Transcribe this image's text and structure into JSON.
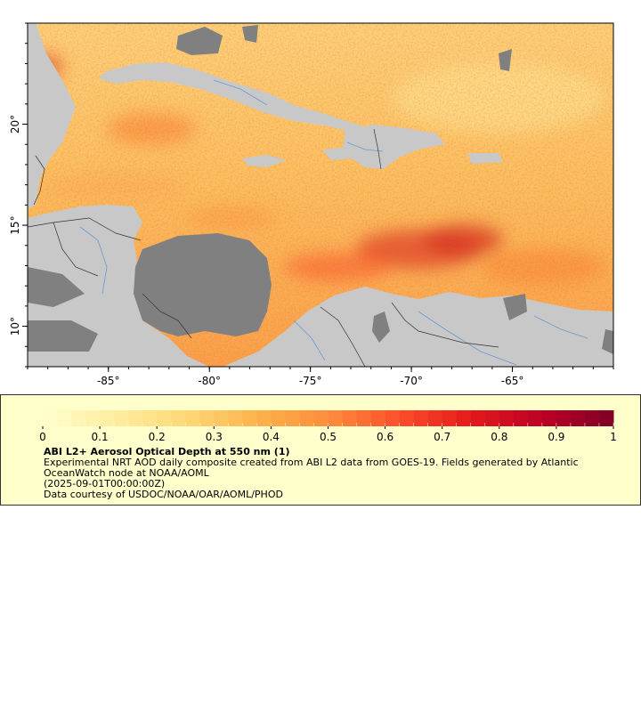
{
  "map": {
    "x_ticks": [
      "-85°",
      "-80°",
      "-75°",
      "-70°",
      "-65°"
    ],
    "y_ticks": [
      "20°",
      "15°",
      "10°"
    ],
    "x_tick_values": [
      -85,
      -80,
      -75,
      -70,
      -65
    ],
    "y_tick_values": [
      20,
      15,
      10
    ],
    "lon_range": [
      -89,
      -60
    ],
    "lat_range": [
      8,
      25
    ],
    "colors": {
      "land": "#c8c8c8",
      "nodata": "#808080",
      "border": "#000000",
      "river": "#6b9bd1"
    }
  },
  "legend": {
    "ticks": [
      "0",
      "0.1",
      "0.2",
      "0.3",
      "0.4",
      "0.5",
      "0.6",
      "0.7",
      "0.8",
      "0.9",
      "1"
    ],
    "tick_values": [
      0,
      0.1,
      0.2,
      0.3,
      0.4,
      0.5,
      0.6,
      0.7,
      0.8,
      0.9,
      1
    ],
    "range": [
      0,
      1
    ],
    "colors": [
      "#ffffcc",
      "#ffeda0",
      "#fed976",
      "#feb24c",
      "#fd8d3c",
      "#fc4e2a",
      "#e31a1c",
      "#bd0026",
      "#800026"
    ],
    "title": "ABI L2+ Aerosol Optical Depth at 550 nm (1)",
    "description": "Experimental NRT AOD daily composite created from ABI L2 data from GOES-19. Fields generated by Atlantic OceanWatch node at NOAA/AOML",
    "time": "(2025-09-01T00:00:00Z)",
    "credit": "Data courtesy of USDOC/NOAA/OAR/AOML/PHOD"
  }
}
